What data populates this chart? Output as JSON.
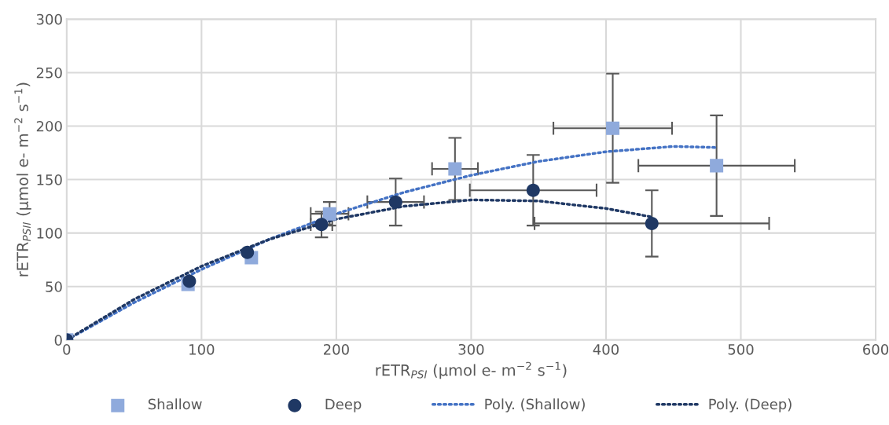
{
  "chart_data": {
    "type": "scatter",
    "xlabel": "rETR$_{PSI}$ (µmol e- m$^{−2}$ s$^{−1}$)",
    "ylabel": "rETR$_{PSII}$ (µmol e- m$^{−2}$ s$^{−1}$)",
    "xlim": [
      0,
      600
    ],
    "xticks": [
      0,
      100,
      200,
      300,
      400,
      500,
      600
    ],
    "ylim": [
      0,
      300
    ],
    "yticks": [
      0,
      50,
      100,
      150,
      200,
      250,
      300
    ],
    "grid": true,
    "legend": "bottom",
    "series": [
      {
        "name": "Shallow",
        "marker": "square",
        "color": "#8faadc",
        "x": [
          0,
          90,
          137,
          195,
          288,
          405,
          482
        ],
        "values": [
          0,
          52,
          77,
          118,
          160,
          198,
          163
        ],
        "errors": [
          null,
          null,
          null,
          11,
          29,
          51,
          47
        ],
        "xerrors": [
          null,
          null,
          null,
          14,
          17,
          44,
          58
        ]
      },
      {
        "name": "Deep",
        "marker": "circle",
        "color": "#1f3864",
        "x": [
          0,
          91,
          134,
          189,
          244,
          346,
          434
        ],
        "values": [
          0,
          55,
          82,
          108,
          129,
          140,
          109
        ],
        "errors": [
          null,
          null,
          null,
          12,
          22,
          33,
          31
        ],
        "xerrors": [
          null,
          null,
          null,
          8,
          21,
          47,
          87
        ]
      },
      {
        "name": "Poly. (Shallow)",
        "type": "line",
        "line_style": "dotted",
        "marker": "none",
        "color": "#4472c4",
        "x": [
          0,
          50,
          100,
          150,
          200,
          250,
          300,
          350,
          400,
          450,
          482
        ],
        "values": [
          0,
          35,
          66,
          94,
          118,
          138,
          154,
          167,
          176,
          181,
          180
        ]
      },
      {
        "name": "Poly. (Deep)",
        "type": "line",
        "line_style": "dotted",
        "marker": "none",
        "color": "#1f3864",
        "x": [
          0,
          50,
          100,
          150,
          200,
          250,
          300,
          350,
          400,
          434
        ],
        "values": [
          0,
          38,
          69,
          94,
          113,
          125,
          131,
          130,
          123,
          115
        ]
      }
    ]
  }
}
